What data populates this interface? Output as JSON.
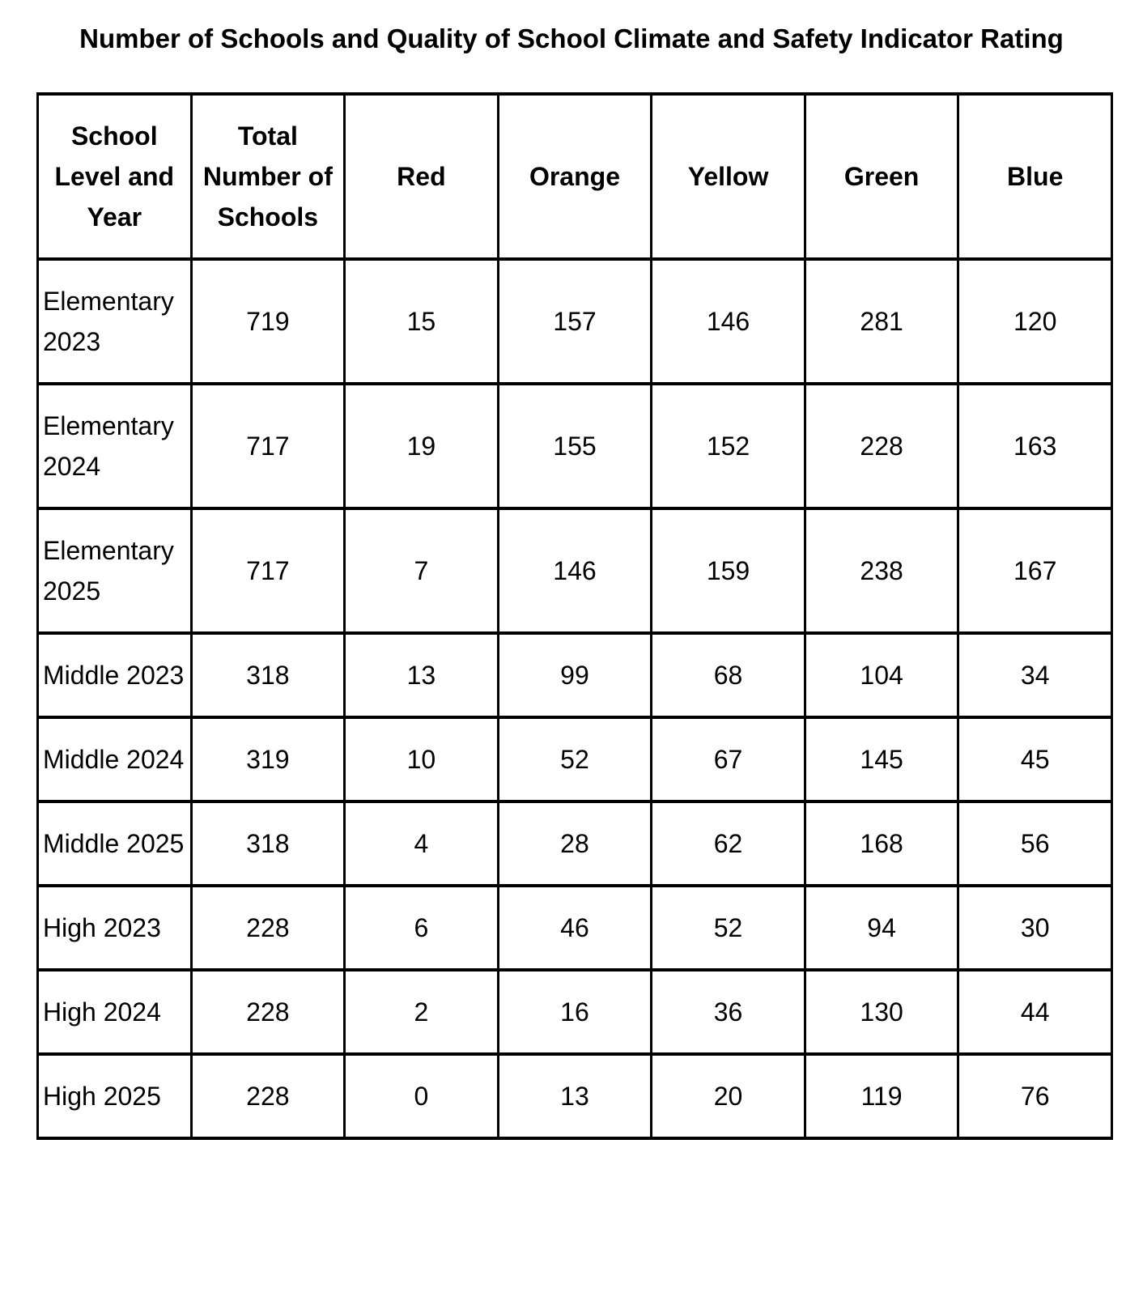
{
  "chart_data": {
    "type": "table",
    "title": "Number of Schools and Quality of School Climate and Safety Indicator Rating",
    "columns": [
      "School Level and Year",
      "Total Number of Schools",
      "Red",
      "Orange",
      "Yellow",
      "Green",
      "Blue"
    ],
    "rows": [
      {
        "label": "Elementary 2023",
        "values": [
          719,
          15,
          157,
          146,
          281,
          120
        ]
      },
      {
        "label": "Elementary 2024",
        "values": [
          717,
          19,
          155,
          152,
          228,
          163
        ]
      },
      {
        "label": "Elementary 2025",
        "values": [
          717,
          7,
          146,
          159,
          238,
          167
        ]
      },
      {
        "label": "Middle 2023",
        "values": [
          318,
          13,
          99,
          68,
          104,
          34
        ]
      },
      {
        "label": "Middle 2024",
        "values": [
          319,
          10,
          52,
          67,
          145,
          45
        ]
      },
      {
        "label": "Middle 2025",
        "values": [
          318,
          4,
          28,
          62,
          168,
          56
        ]
      },
      {
        "label": "High 2023",
        "values": [
          228,
          6,
          46,
          52,
          94,
          30
        ]
      },
      {
        "label": "High 2024",
        "values": [
          228,
          2,
          16,
          36,
          130,
          44
        ]
      },
      {
        "label": "High 2025",
        "values": [
          228,
          0,
          13,
          20,
          119,
          76
        ]
      }
    ],
    "layout": {
      "grid": "on",
      "text_color": "#000000",
      "border_color": "#000000",
      "background_color": "#ffffff"
    }
  }
}
